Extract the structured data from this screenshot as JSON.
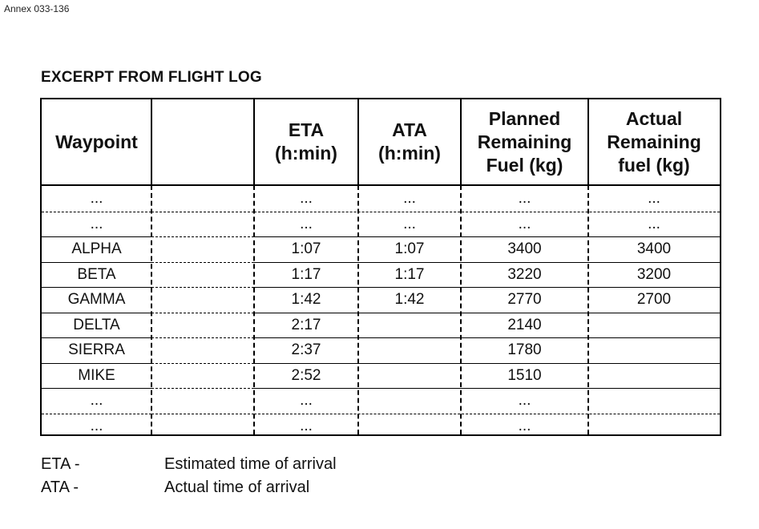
{
  "annex_label": "Annex 033-136",
  "title": "EXCERPT FROM FLIGHT LOG",
  "headers": [
    "Waypoint",
    "",
    "ETA\n(h:min)",
    "ATA\n(h:min)",
    "Planned\nRemaining\nFuel (kg)",
    "Actual\nRemaining\nfuel (kg)"
  ],
  "rows": [
    [
      "...",
      "",
      "...",
      "...",
      "...",
      "..."
    ],
    [
      "...",
      "",
      "...",
      "...",
      "...",
      "..."
    ],
    [
      "ALPHA",
      "",
      "1:07",
      "1:07",
      "3400",
      "3400"
    ],
    [
      "BETA",
      "",
      "1:17",
      "1:17",
      "3220",
      "3200"
    ],
    [
      "GAMMA",
      "",
      "1:42",
      "1:42",
      "2770",
      "2700"
    ],
    [
      "DELTA",
      "",
      "2:17",
      "",
      "2140",
      ""
    ],
    [
      "SIERRA",
      "",
      "2:37",
      "",
      "1780",
      ""
    ],
    [
      "MIKE",
      "",
      "2:52",
      "",
      "1510",
      ""
    ],
    [
      "...",
      "",
      "...",
      "",
      "...",
      ""
    ],
    [
      "...",
      "",
      "...",
      "",
      "...",
      ""
    ]
  ],
  "legend": [
    {
      "abbr": "ETA -",
      "text": "Estimated time of arrival"
    },
    {
      "abbr": "ATA -",
      "text": "Actual time of arrival"
    }
  ]
}
